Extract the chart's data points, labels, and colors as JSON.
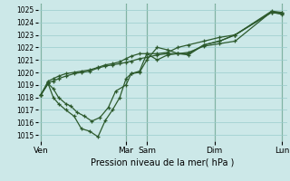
{
  "xlabel": "Pression niveau de la mer( hPa )",
  "background_color": "#cce8e8",
  "grid_color": "#99cccc",
  "line_color": "#2d5a2d",
  "ylim": [
    1014.5,
    1025.5
  ],
  "yticks": [
    1015,
    1016,
    1017,
    1018,
    1019,
    1020,
    1021,
    1022,
    1023,
    1024,
    1025
  ],
  "xlim": [
    0,
    24
  ],
  "day_labels": [
    "Ven",
    "Mar",
    "Sam",
    "Dim",
    "Lun"
  ],
  "day_positions": [
    0.3,
    8.5,
    10.5,
    17.0,
    23.5
  ],
  "vline_positions": [
    0.3,
    8.5,
    10.5,
    17.0,
    23.5
  ],
  "line1": [
    1018.2,
    1019.1,
    1018.7,
    1018.0,
    1017.5,
    1017.3,
    1016.8,
    1016.5,
    1016.1,
    1016.4,
    1017.2,
    1018.5,
    1019.0,
    1019.9,
    1020.0,
    1021.0,
    1022.0,
    1021.8,
    1021.5,
    1021.5,
    1022.2,
    1022.5,
    1023.0,
    1024.8,
    1024.7
  ],
  "line1_x": [
    0.3,
    1.0,
    1.5,
    2.0,
    2.7,
    3.2,
    3.8,
    4.5,
    5.2,
    6.0,
    6.8,
    7.5,
    8.5,
    9.0,
    9.8,
    10.5,
    11.5,
    12.5,
    13.5,
    14.5,
    16.0,
    17.5,
    19.0,
    22.5,
    23.5
  ],
  "line2": [
    1018.2,
    1019.1,
    1018.0,
    1017.5,
    1017.0,
    1016.5,
    1015.5,
    1015.3,
    1014.85,
    1016.15,
    1017.0,
    1018.0,
    1019.5,
    1019.9,
    1020.1,
    1021.5,
    1021.0,
    1021.4,
    1021.5,
    1021.4,
    1022.2,
    1022.5,
    1023.0,
    1024.8,
    1024.65
  ],
  "line2_x": [
    0.3,
    1.0,
    1.5,
    2.0,
    2.7,
    3.5,
    4.2,
    5.0,
    5.8,
    6.5,
    7.2,
    7.9,
    8.5,
    9.0,
    9.8,
    10.5,
    11.5,
    12.5,
    13.5,
    14.5,
    16.0,
    17.5,
    19.0,
    22.5,
    23.5
  ],
  "line3": [
    1018.2,
    1019.2,
    1019.3,
    1019.5,
    1019.7,
    1019.9,
    1020.0,
    1020.1,
    1020.35,
    1020.5,
    1020.6,
    1020.7,
    1020.8,
    1020.9,
    1021.1,
    1021.2,
    1021.4,
    1021.5,
    1021.5,
    1021.6,
    1022.1,
    1022.3,
    1022.5,
    1024.85,
    1024.75
  ],
  "line3_x": [
    0.3,
    1.0,
    1.5,
    2.0,
    2.7,
    3.5,
    4.2,
    5.0,
    5.8,
    6.5,
    7.2,
    7.9,
    8.5,
    9.0,
    9.8,
    10.5,
    11.5,
    12.5,
    13.5,
    14.5,
    16.0,
    17.5,
    19.0,
    22.5,
    23.5
  ],
  "line4": [
    1018.2,
    1019.3,
    1019.5,
    1019.7,
    1019.9,
    1020.0,
    1020.1,
    1020.2,
    1020.4,
    1020.6,
    1020.7,
    1020.85,
    1021.1,
    1021.3,
    1021.5,
    1021.5,
    1021.5,
    1021.6,
    1022.0,
    1022.2,
    1022.5,
    1022.8,
    1023.0,
    1024.9,
    1024.8
  ],
  "line4_x": [
    0.3,
    1.0,
    1.5,
    2.0,
    2.7,
    3.5,
    4.2,
    5.0,
    5.8,
    6.5,
    7.2,
    7.9,
    8.5,
    9.0,
    9.8,
    10.5,
    11.5,
    12.5,
    13.5,
    14.5,
    16.0,
    17.5,
    19.0,
    22.5,
    23.5
  ]
}
